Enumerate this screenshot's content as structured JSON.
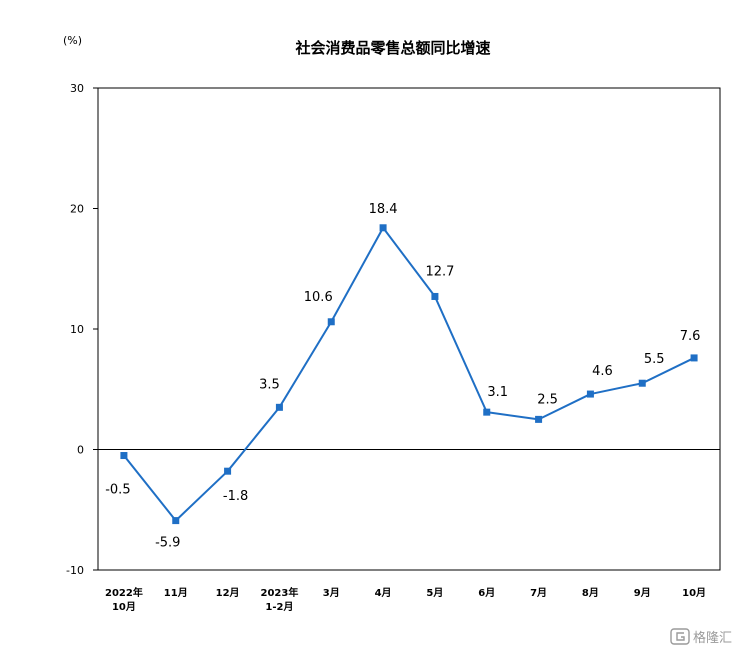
{
  "chart_data": {
    "type": "line",
    "title": "社会消费品零售总额同比增速",
    "unit": "(%)",
    "categories": [
      [
        "2022年",
        "10月"
      ],
      [
        "11月"
      ],
      [
        "12月"
      ],
      [
        "2023年",
        "1-2月"
      ],
      [
        "3月"
      ],
      [
        "4月"
      ],
      [
        "5月"
      ],
      [
        "6月"
      ],
      [
        "7月"
      ],
      [
        "8月"
      ],
      [
        "9月"
      ],
      [
        "10月"
      ]
    ],
    "values": [
      -0.5,
      -5.9,
      -1.8,
      3.5,
      10.6,
      18.4,
      12.7,
      3.1,
      2.5,
      4.6,
      5.5,
      7.6
    ],
    "ylim": [
      -10,
      30
    ],
    "yticks": [
      -10,
      0,
      10,
      20,
      30
    ],
    "grid": false,
    "legend": "none",
    "line_color": "#1f6fc5"
  },
  "watermark": {
    "text": "格隆汇",
    "icon": "g-logo-icon"
  }
}
